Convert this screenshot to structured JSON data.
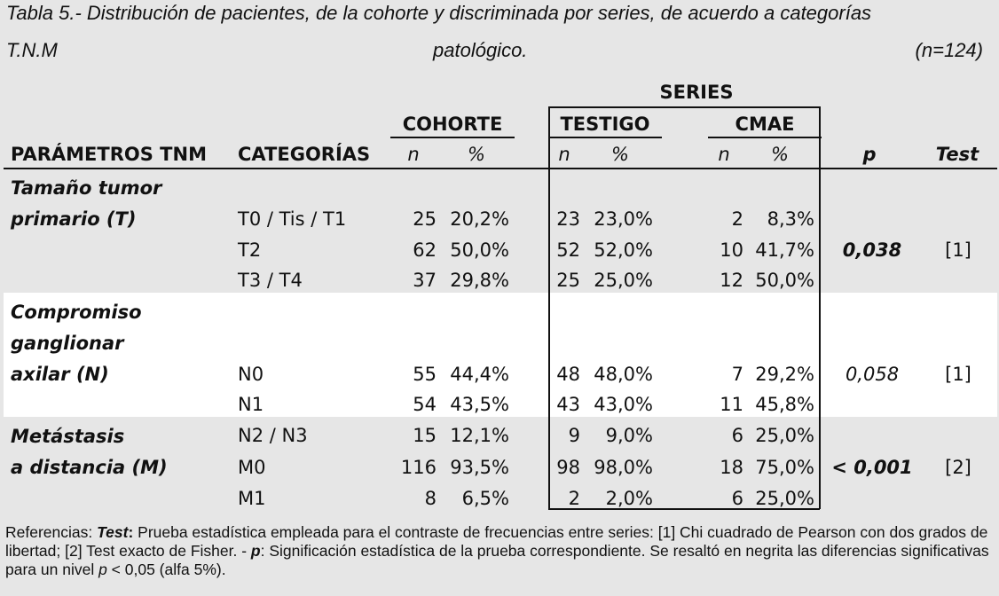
{
  "title": {
    "line1": "Tabla 5.- Distribución de pacientes, de la cohorte y discriminada por series, de acuerdo a categorías",
    "line2_left": "T.N.M",
    "line2_center": "patológico.",
    "line2_right": "(n=124)"
  },
  "headers": {
    "series": "SERIES",
    "cohorte": "COHORTE",
    "testigo": "TESTIGO",
    "cmae": "CMAE",
    "parametros": "PARÁMETROS TNM",
    "categorias": "CATEGORÍAS",
    "n": "n",
    "pct": "%",
    "p": "p",
    "test": "Test"
  },
  "groups": [
    {
      "param_lines": [
        "Tamaño tumor",
        "primario (T)"
      ],
      "p": "0,038",
      "p_bold": true,
      "test": "[1]",
      "rows": [
        {
          "cat": "T0 / Tis / T1",
          "co_n": "25",
          "co_pct": "20,2%",
          "te_n": "23",
          "te_pct": "23,0%",
          "cm_n": "2",
          "cm_pct": "8,3%"
        },
        {
          "cat": "T2",
          "co_n": "62",
          "co_pct": "50,0%",
          "te_n": "52",
          "te_pct": "52,0%",
          "cm_n": "10",
          "cm_pct": "41,7%"
        },
        {
          "cat": "T3 / T4",
          "co_n": "37",
          "co_pct": "29,8%",
          "te_n": "25",
          "te_pct": "25,0%",
          "cm_n": "12",
          "cm_pct": "50,0%"
        }
      ]
    },
    {
      "param_lines": [
        "Compromiso",
        "ganglionar",
        "axilar (N)"
      ],
      "p": "0,058",
      "p_bold": false,
      "test": "[1]",
      "rows": [
        {
          "cat": "N0",
          "co_n": "55",
          "co_pct": "44,4%",
          "te_n": "48",
          "te_pct": "48,0%",
          "cm_n": "7",
          "cm_pct": "29,2%"
        },
        {
          "cat": "N1",
          "co_n": "54",
          "co_pct": "43,5%",
          "te_n": "43",
          "te_pct": "43,0%",
          "cm_n": "11",
          "cm_pct": "45,8%"
        },
        {
          "cat": "N2 / N3",
          "co_n": "15",
          "co_pct": "12,1%",
          "te_n": "9",
          "te_pct": "9,0%",
          "cm_n": "6",
          "cm_pct": "25,0%"
        }
      ]
    },
    {
      "param_lines": [
        "Metástasis",
        "a distancia (M)"
      ],
      "p": "< 0,001",
      "p_bold": true,
      "test": "[2]",
      "rows": [
        {
          "cat": "M0",
          "co_n": "116",
          "co_pct": "93,5%",
          "te_n": "98",
          "te_pct": "98,0%",
          "cm_n": "18",
          "cm_pct": "75,0%"
        },
        {
          "cat": "M1",
          "co_n": "8",
          "co_pct": "6,5%",
          "te_n": "2",
          "te_pct": "2,0%",
          "cm_n": "6",
          "cm_pct": "25,0%"
        }
      ]
    }
  ],
  "footnote": {
    "ref_label": "Referencias: ",
    "test_label": "Test",
    "colon": ":",
    "text1": " Prueba estadística empleada para el contraste de frecuencias entre series: [1] Chi cuadrado de Pearson con dos grados de libertad; [2] Test exacto de Fisher. - ",
    "p_label": "p",
    "text2": ": Significación estadística de la prueba correspondiente. Se resaltó en negrita las diferencias significativas para un nivel ",
    "p_italic": "p",
    "text3": " < 0,05 (alfa 5%)."
  }
}
